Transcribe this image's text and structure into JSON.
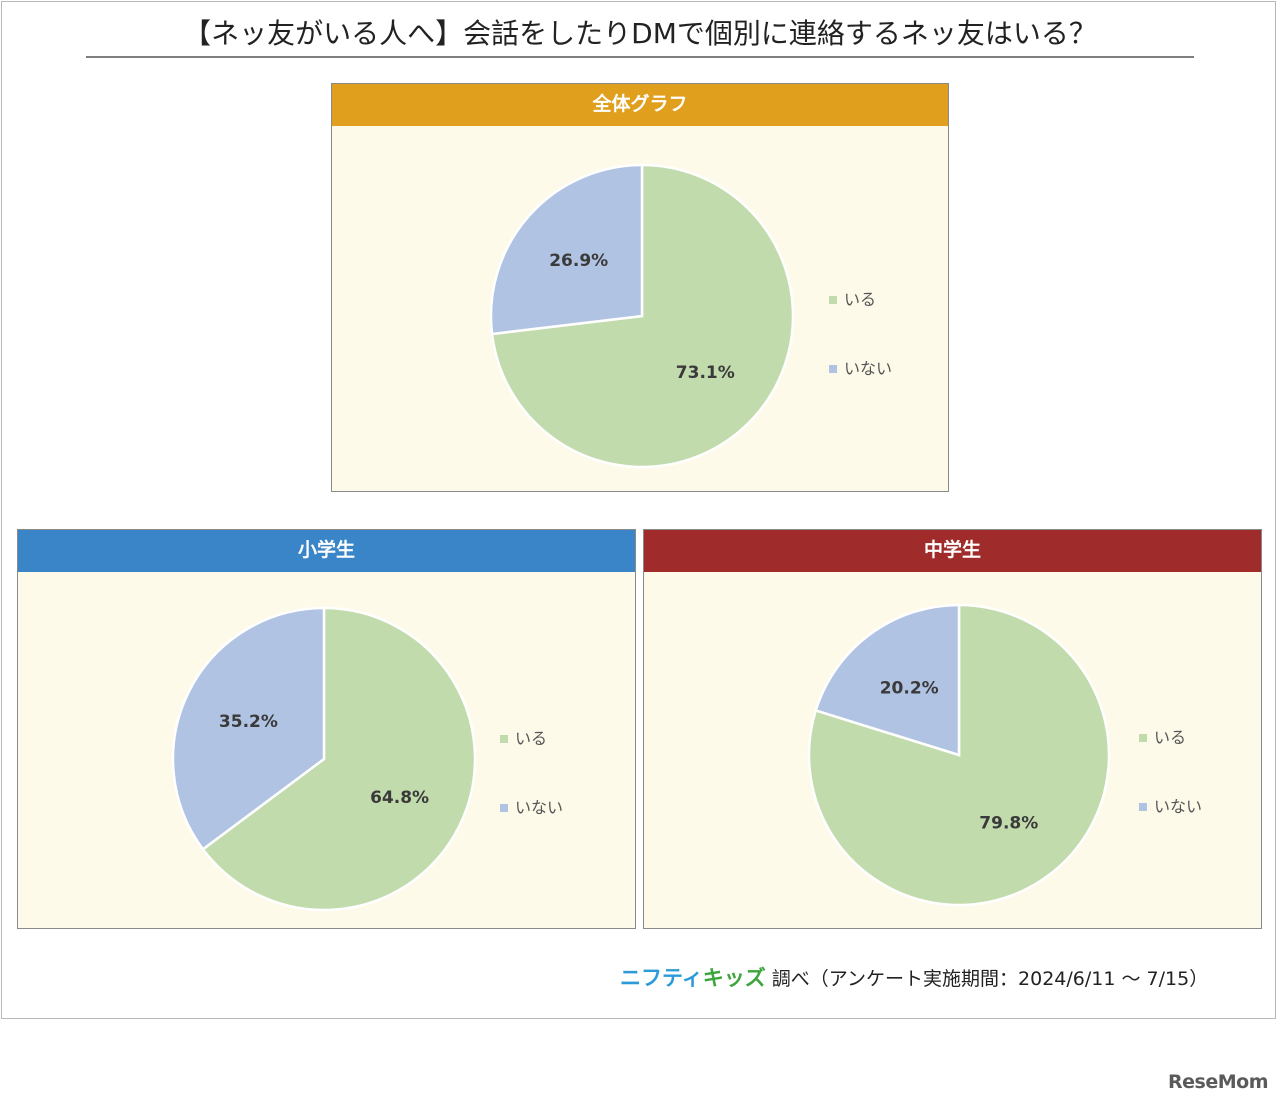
{
  "title": "【ネッ友がいる人へ】会話をしたりDMで個別に連絡するネッ友はいる？",
  "colors": {
    "yes": "#c2dbad",
    "no": "#b0c3e3",
    "panel_bg": "#fdfaea",
    "header_overall": "#e09f1c",
    "header_elementary": "#3a85c8",
    "header_junior": "#9f2b2a"
  },
  "chart_data": [
    {
      "type": "pie",
      "title": "全体グラフ",
      "categories": [
        "いる",
        "いない"
      ],
      "values": [
        73.1,
        26.9
      ],
      "labels": [
        "73.1%",
        "26.9%"
      ],
      "legend": "right"
    },
    {
      "type": "pie",
      "title": "小学生",
      "categories": [
        "いる",
        "いない"
      ],
      "values": [
        64.8,
        35.2
      ],
      "labels": [
        "64.8%",
        "35.2%"
      ],
      "legend": "right"
    },
    {
      "type": "pie",
      "title": "中学生",
      "categories": [
        "いる",
        "いない"
      ],
      "values": [
        79.8,
        20.2
      ],
      "labels": [
        "79.8%",
        "20.2%"
      ],
      "legend": "right"
    }
  ],
  "source": {
    "brand_part1": "ニフティ",
    "brand_part2": "キッズ",
    "text": "調べ（アンケート実施期間：2024/6/11 ～ 7/15）"
  },
  "watermark": "ReseMom"
}
